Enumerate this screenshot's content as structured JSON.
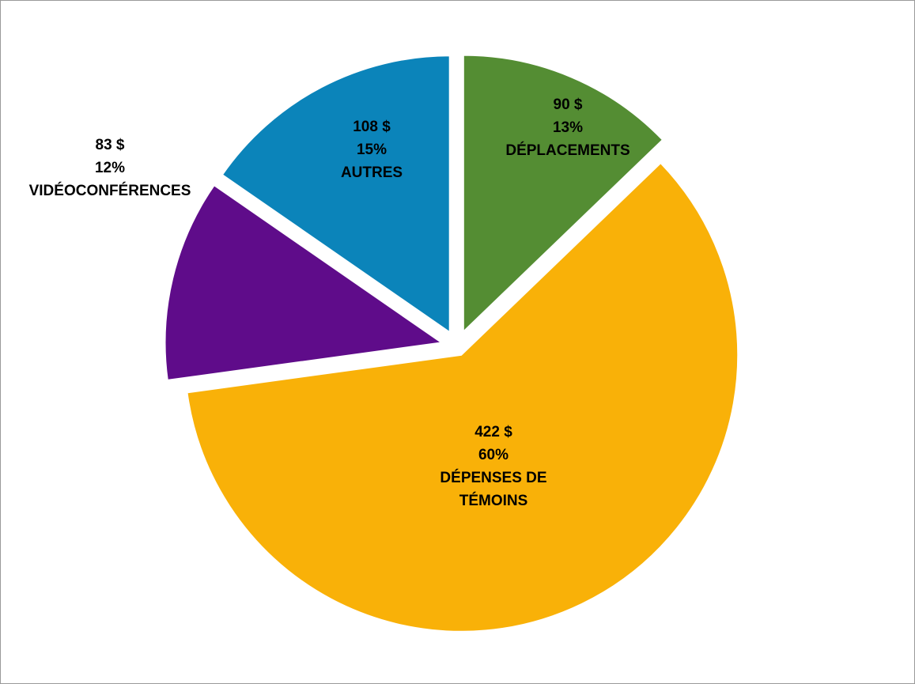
{
  "chart_data": {
    "type": "pie",
    "title": "",
    "unit": "$",
    "exploded": true,
    "legend": "none",
    "slices": [
      {
        "label": "DÉPLACEMENTS",
        "value": 90,
        "value_text": "90 $",
        "percent_text": "13%",
        "label_lines": [
          "DÉPLACEMENTS"
        ],
        "color": "#548D33"
      },
      {
        "label": "DÉPENSES DE TÉMOINS",
        "value": 422,
        "value_text": "422 $",
        "percent_text": "60%",
        "label_lines": [
          "DÉPENSES DE",
          "TÉMOINS"
        ],
        "color": "#F9B108"
      },
      {
        "label": "VIDÉOCONFÉRENCES",
        "value": 83,
        "value_text": "83 $",
        "percent_text": "12%",
        "label_lines": [
          "VIDÉOCONFÉRENCES"
        ],
        "color": "#5F0C8A"
      },
      {
        "label": "AUTRES",
        "value": 108,
        "value_text": "108 $",
        "percent_text": "15%",
        "label_lines": [
          "AUTRES"
        ],
        "color": "#0B84BA"
      }
    ]
  }
}
